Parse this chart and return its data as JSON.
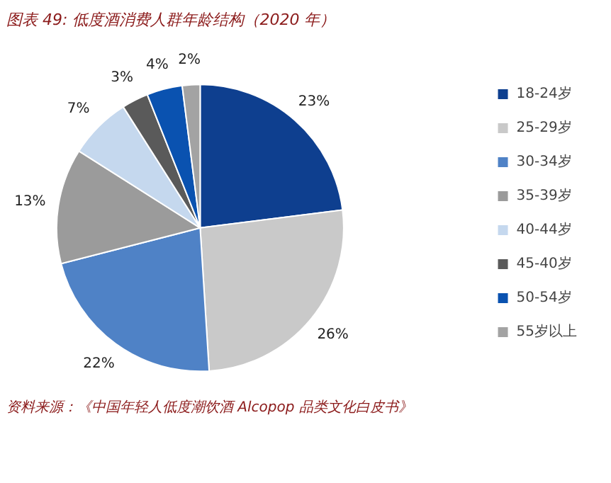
{
  "chart_data": {
    "type": "pie",
    "title": "图表 49: 低度酒消费人群年龄结构（2020 年）",
    "categories": [
      "18-24岁",
      "25-29岁",
      "30-34岁",
      "35-39岁",
      "40-44岁",
      "45-40岁",
      "50-54岁",
      "55岁以上"
    ],
    "values": [
      23,
      26,
      22,
      13,
      7,
      3,
      4,
      2
    ],
    "colors": [
      "#0e3f8f",
      "#c9c9c9",
      "#4f82c6",
      "#9b9b9b",
      "#c5d8ee",
      "#5a5a5a",
      "#0a52b0",
      "#a3a3a3"
    ],
    "value_labels": [
      "23%",
      "26%",
      "22%",
      "13%",
      "7%",
      "3%",
      "4%",
      "2%"
    ],
    "legend": "right",
    "annotations": [
      "资料来源：《中国年轻人低度潮饮酒 Alcopop 品类文化白皮书》"
    ]
  }
}
